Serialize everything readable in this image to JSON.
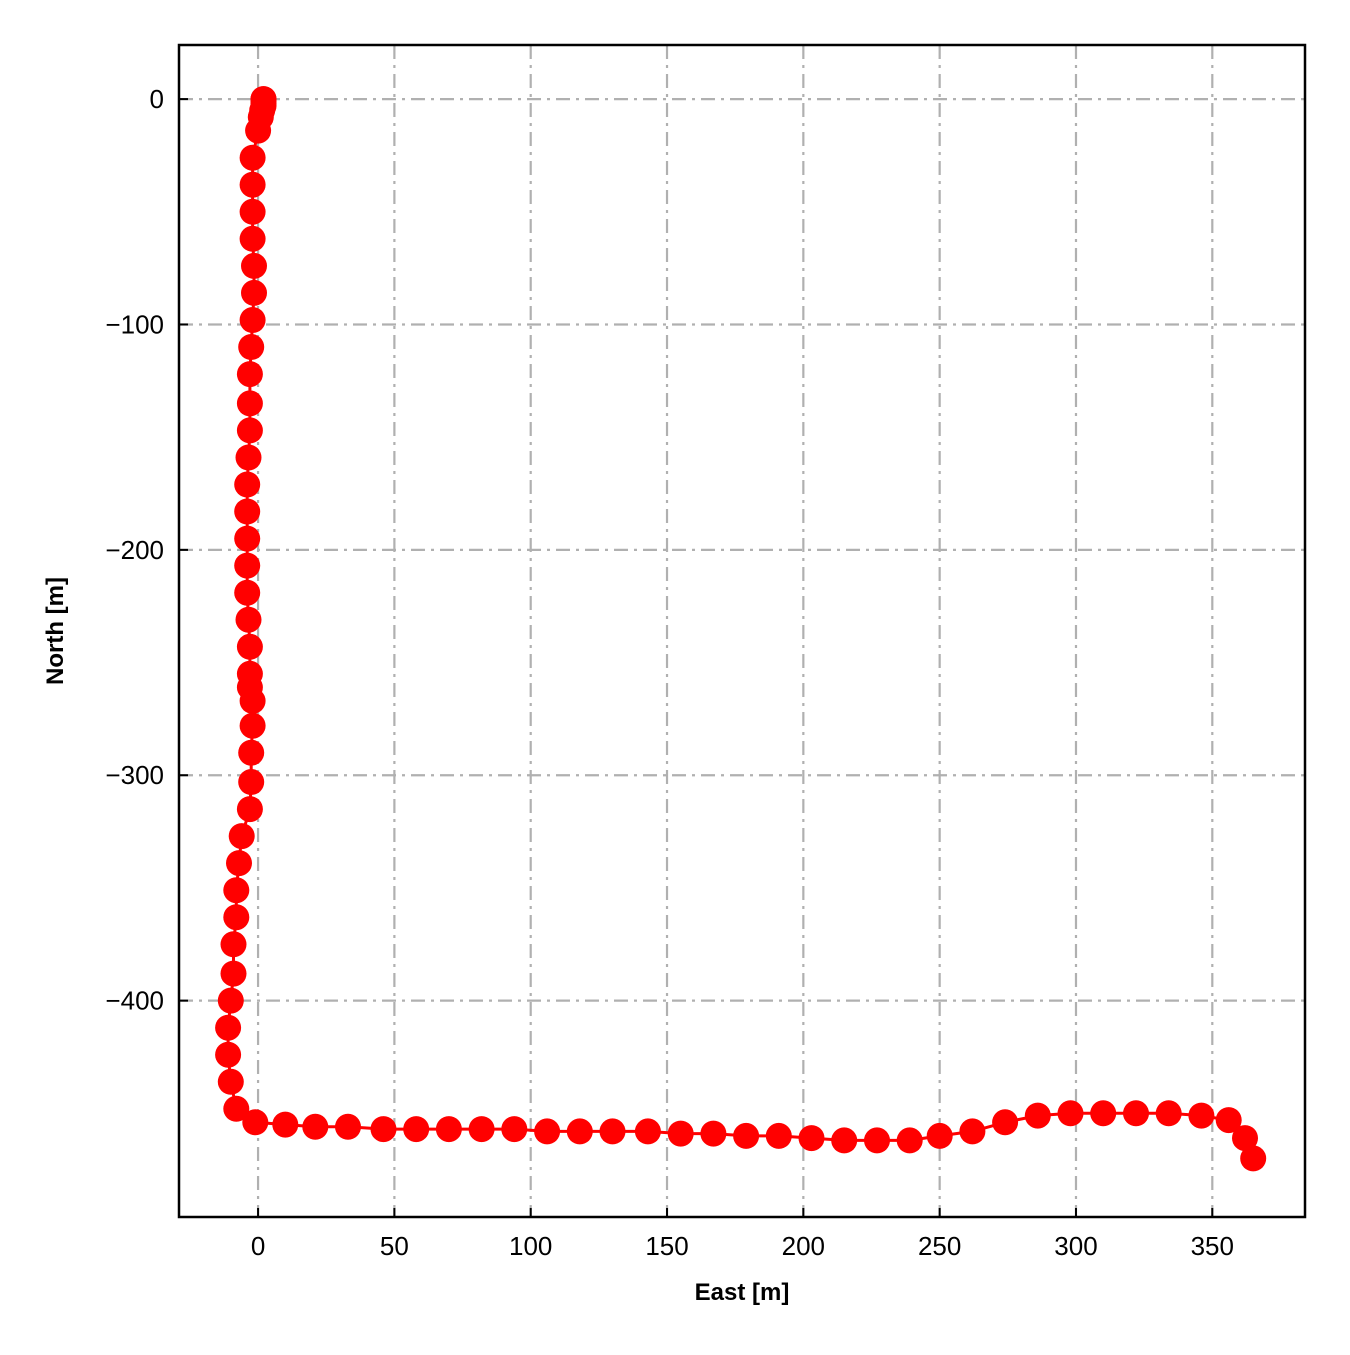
{
  "chart_data": {
    "type": "scatter",
    "xlabel": "East [m]",
    "ylabel": "North [m]",
    "xlim": [
      -29,
      384
    ],
    "ylim": [
      -496,
      24
    ],
    "x_ticks": [
      0,
      50,
      100,
      150,
      200,
      250,
      300,
      350
    ],
    "y_ticks": [
      0,
      -100,
      -200,
      -300,
      -400
    ],
    "x_tick_labels": [
      "0",
      "50",
      "100",
      "150",
      "200",
      "250",
      "300",
      "350"
    ],
    "y_tick_labels": [
      "0",
      "−100",
      "−200",
      "−300",
      "−400"
    ],
    "grid": true,
    "legend": null,
    "series": [
      {
        "color": "#ff0000",
        "marker": "circle",
        "line": true,
        "x": [
          2,
          2,
          2,
          2,
          2,
          1.5,
          1,
          0,
          -2,
          -2,
          -2,
          -2,
          -1.5,
          -1.5,
          -2,
          -2.5,
          -3,
          -3,
          -3,
          -3.5,
          -4,
          -4,
          -4,
          -4,
          -4,
          -3.5,
          -3,
          -3,
          -3,
          -2,
          -2,
          -2.5,
          -2.5,
          -3,
          -6,
          -7,
          -8,
          -8,
          -9,
          -9,
          -10,
          -11,
          -11,
          -10,
          -8,
          -1,
          10,
          21,
          33,
          46,
          58,
          70,
          82,
          94,
          106,
          118,
          130,
          143,
          155,
          167,
          179,
          191,
          203,
          215,
          227,
          239,
          250,
          262,
          274,
          286,
          298,
          310,
          322,
          334,
          346,
          356,
          362,
          365
        ],
        "y": [
          0,
          0,
          -1,
          -2,
          -3,
          -5,
          -8,
          -14,
          -26,
          -38,
          -50,
          -62,
          -74,
          -86,
          -98,
          -110,
          -122,
          -135,
          -147,
          -159,
          -171,
          -183,
          -195,
          -207,
          -219,
          -231,
          -243,
          -255,
          -261,
          -267,
          -278,
          -290,
          -303,
          -315,
          -327,
          -339,
          -351,
          -363,
          -375,
          -388,
          -400,
          -412,
          -424,
          -436,
          -448,
          -454,
          -455,
          -456,
          -456,
          -457,
          -457,
          -457,
          -457,
          -457,
          -458,
          -458,
          -458,
          -458,
          -459,
          -459,
          -460,
          -460,
          -461,
          -462,
          -462,
          -462,
          -460,
          -458,
          -454,
          -451,
          -450,
          -450,
          -450,
          -450,
          -451,
          -453,
          -461,
          -470
        ]
      }
    ]
  }
}
